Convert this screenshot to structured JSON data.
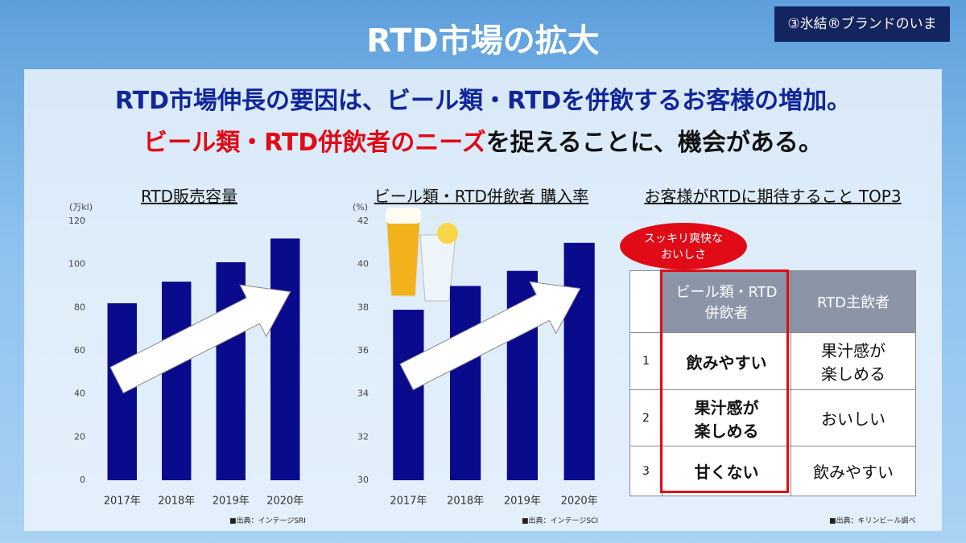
{
  "header": {
    "title": "RTD市場の拡大",
    "badge": "③氷結®ブランドのいま"
  },
  "headline": {
    "line1": "RTD市場伸長の要因は、ビール類・RTDを併飲するお客様の増加。",
    "line2_red": "ビール類・RTD併飲者のニーズ",
    "line2_rest": "を捉えることに、機会がある。"
  },
  "chart_data": [
    {
      "type": "bar",
      "title": "RTD販売容量",
      "y_unit": "(万kl)",
      "categories": [
        "2017年",
        "2018年",
        "2019年",
        "2020年"
      ],
      "values": [
        82,
        92,
        101,
        112
      ],
      "color": "#0a0a8c",
      "ylim": [
        0,
        120
      ],
      "yticks": [
        0,
        20,
        40,
        60,
        80,
        100,
        120
      ],
      "grid": false,
      "source": "■出典：インテージSRI"
    },
    {
      "type": "bar",
      "title": "ビール類・RTD併飲者 購入率",
      "y_unit": "(%)",
      "categories": [
        "2017年",
        "2018年",
        "2019年",
        "2020年"
      ],
      "values": [
        37.9,
        39.0,
        39.7,
        41.0
      ],
      "color": "#0a0a8c",
      "ylim": [
        30,
        42
      ],
      "yticks": [
        30,
        32,
        34,
        36,
        38,
        40,
        42
      ],
      "grid": false,
      "source": "■出典：インテージSCI"
    }
  ],
  "table": {
    "title": "お客様がRTDに期待すること TOP3",
    "callout": "スッキリ爽快な\nおいしさ",
    "header": [
      "ビール類・RTD\n併飲者",
      "RTD主飲者"
    ],
    "rows": [
      [
        "1",
        "飲みやすい",
        "果汁感が\n楽しめる"
      ],
      [
        "2",
        "果汁感が\n楽しめる",
        "おいしい"
      ],
      [
        "3",
        "甘くない",
        "飲みやすい"
      ]
    ],
    "source": "■出典：キリンビール調べ"
  }
}
